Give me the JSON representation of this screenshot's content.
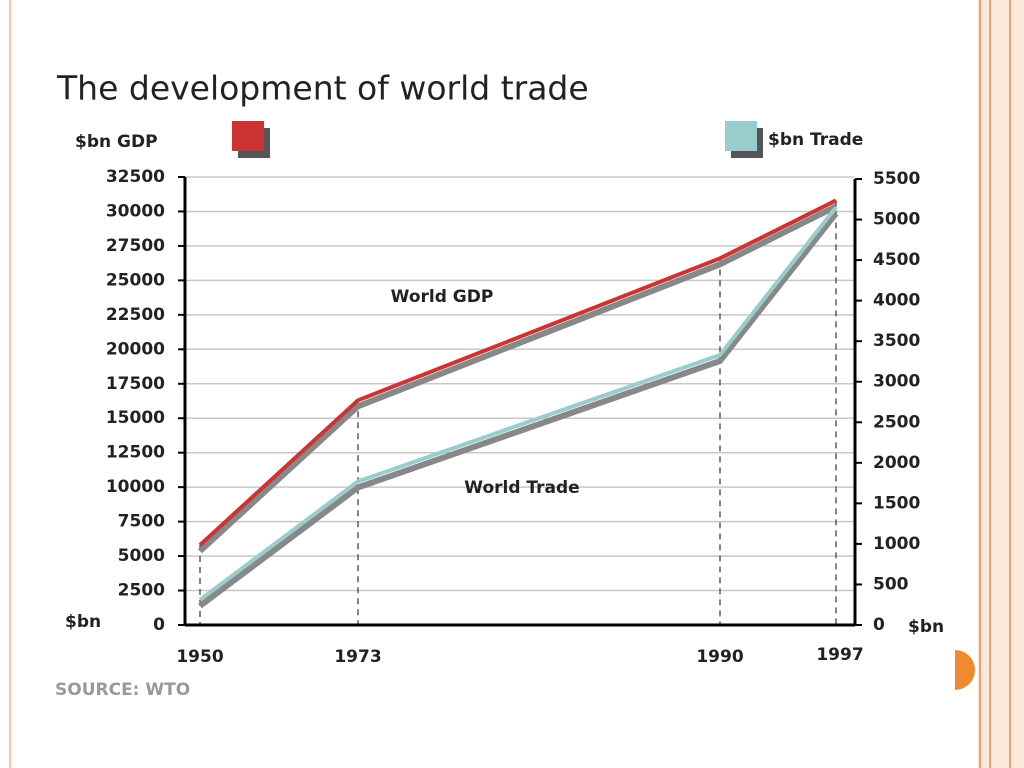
{
  "chart_data": {
    "type": "line",
    "title": "The development of world trade",
    "y_label": "$bn GDP",
    "y2_label": "$bn Trade",
    "y_unit": "$bn",
    "y2_unit": "$bn",
    "source": "SOURCE: WTO",
    "categories": [
      "1950",
      "1973",
      "1990",
      "1997"
    ],
    "series": [
      {
        "name": "World GDP",
        "color": "#cc3333",
        "values": [
          5800,
          16300,
          26600,
          30800
        ]
      },
      {
        "name": "World Trade",
        "color": "#99cccc",
        "axis": "y2",
        "values": [
          310,
          1770,
          3330,
          5150
        ]
      }
    ],
    "ylim": [
      0,
      32500
    ],
    "yticks": [
      0,
      2500,
      5000,
      7500,
      10000,
      12500,
      15000,
      17500,
      20000,
      22500,
      25000,
      27500,
      30000,
      32500
    ],
    "y2lim": [
      0,
      5500
    ],
    "y2ticks": [
      0,
      500,
      1000,
      1500,
      2000,
      2500,
      3000,
      3500,
      4000,
      4500,
      5000,
      5500
    ],
    "grid": true
  }
}
